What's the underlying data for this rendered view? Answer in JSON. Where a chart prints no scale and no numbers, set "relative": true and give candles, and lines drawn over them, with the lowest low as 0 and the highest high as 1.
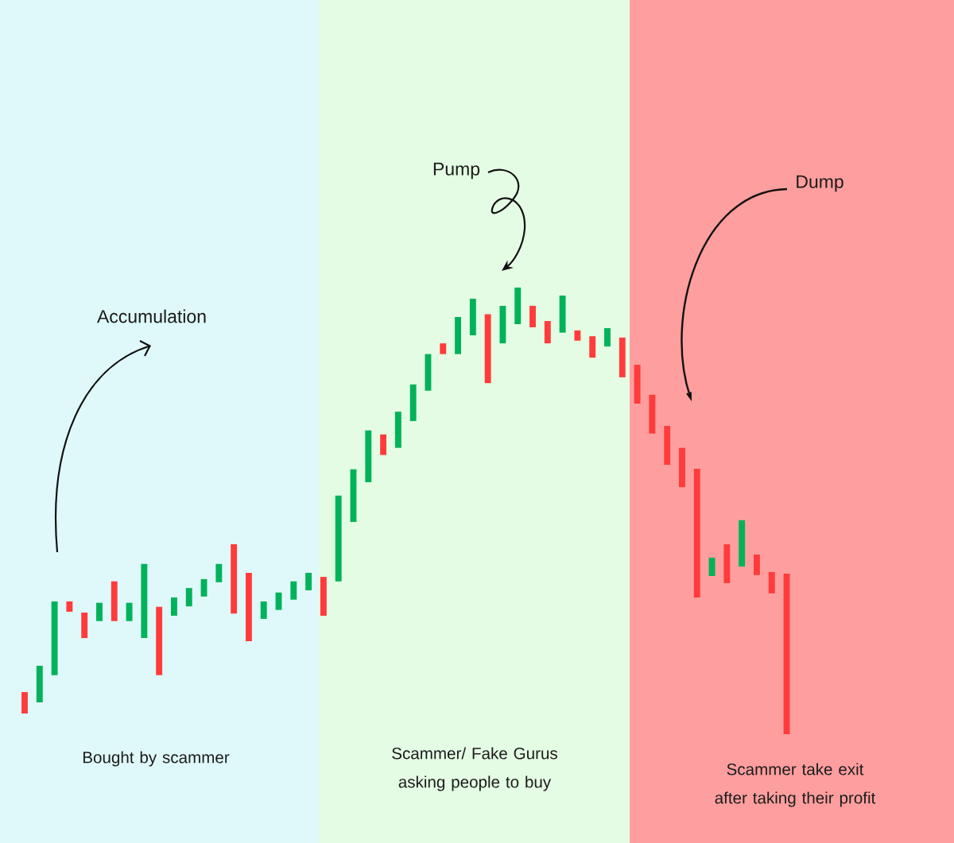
{
  "chart_data": {
    "type": "candlestick",
    "relative": true,
    "categories": [
      null,
      null,
      null,
      null,
      null,
      null,
      null,
      null,
      null,
      null,
      null,
      null,
      null,
      null,
      null,
      null,
      null,
      null,
      null,
      null,
      null,
      null,
      null,
      null,
      null,
      null,
      null,
      null,
      null,
      null,
      null,
      null,
      null,
      null,
      null,
      null,
      null,
      null,
      null,
      null,
      null,
      null,
      null,
      null,
      null,
      null,
      null,
      null,
      null,
      null,
      null,
      null
    ],
    "ohlc": [
      [
        0.094,
        0.094,
        0.046,
        0.046
      ],
      [
        0.071,
        0.153,
        0.071,
        0.153
      ],
      [
        0.132,
        0.297,
        0.132,
        0.297
      ],
      [
        0.297,
        0.297,
        0.274,
        0.274
      ],
      [
        0.272,
        0.272,
        0.215,
        0.215
      ],
      [
        0.253,
        0.294,
        0.253,
        0.294
      ],
      [
        0.342,
        0.342,
        0.253,
        0.253
      ],
      [
        0.253,
        0.294,
        0.253,
        0.294
      ],
      [
        0.215,
        0.381,
        0.215,
        0.381
      ],
      [
        0.285,
        0.285,
        0.132,
        0.132
      ],
      [
        0.265,
        0.306,
        0.265,
        0.306
      ],
      [
        0.286,
        0.327,
        0.286,
        0.327
      ],
      [
        0.308,
        0.347,
        0.308,
        0.347
      ],
      [
        0.34,
        0.381,
        0.34,
        0.381
      ],
      [
        0.425,
        0.425,
        0.27,
        0.27
      ],
      [
        0.361,
        0.361,
        0.208,
        0.208
      ],
      [
        0.258,
        0.297,
        0.258,
        0.297
      ],
      [
        0.278,
        0.317,
        0.278,
        0.317
      ],
      [
        0.301,
        0.342,
        0.301,
        0.342
      ],
      [
        0.322,
        0.361,
        0.322,
        0.361
      ],
      [
        0.352,
        0.352,
        0.265,
        0.265
      ],
      [
        0.342,
        0.534,
        0.342,
        0.534
      ],
      [
        0.475,
        0.593,
        0.475,
        0.593
      ],
      [
        0.564,
        0.68,
        0.564,
        0.68
      ],
      [
        0.671,
        0.671,
        0.625,
        0.625
      ],
      [
        0.641,
        0.722,
        0.641,
        0.722
      ],
      [
        0.701,
        0.783,
        0.701,
        0.783
      ],
      [
        0.769,
        0.851,
        0.769,
        0.851
      ],
      [
        0.875,
        0.875,
        0.851,
        0.851
      ],
      [
        0.851,
        0.934,
        0.851,
        0.934
      ],
      [
        0.893,
        0.975,
        0.893,
        0.975
      ],
      [
        0.94,
        0.94,
        0.786,
        0.786
      ],
      [
        0.875,
        0.959,
        0.875,
        0.959
      ],
      [
        0.918,
        1,
        0.918,
        1
      ],
      [
        0.959,
        0.959,
        0.911,
        0.911
      ],
      [
        0.925,
        0.925,
        0.875,
        0.875
      ],
      [
        0.899,
        0.982,
        0.899,
        0.982
      ],
      [
        0.904,
        0.904,
        0.881,
        0.881
      ],
      [
        0.891,
        0.891,
        0.843,
        0.843
      ],
      [
        0.868,
        0.909,
        0.868,
        0.909
      ],
      [
        0.888,
        0.888,
        0.799,
        0.799
      ],
      [
        0.827,
        0.827,
        0.74,
        0.74
      ],
      [
        0.76,
        0.76,
        0.673,
        0.673
      ],
      [
        0.69,
        0.69,
        0.603,
        0.603
      ],
      [
        0.641,
        0.641,
        0.553,
        0.553
      ],
      [
        0.594,
        0.594,
        0.306,
        0.306
      ],
      [
        0.354,
        0.395,
        0.354,
        0.395
      ],
      [
        0.425,
        0.425,
        0.338,
        0.338
      ],
      [
        0.375,
        0.479,
        0.375,
        0.479
      ],
      [
        0.402,
        0.402,
        0.356,
        0.356
      ],
      [
        0.363,
        0.363,
        0.315,
        0.315
      ],
      [
        0.359,
        0.359,
        0,
        0
      ]
    ],
    "colors": [
      "#ff3b3b",
      "#00b259",
      "#00b259",
      "#ff3b3b",
      "#ff3b3b",
      "#00b259",
      "#ff3b3b",
      "#00b259",
      "#00b259",
      "#ff3b3b",
      "#00b259",
      "#00b259",
      "#00b259",
      "#00b259",
      "#ff3b3b",
      "#ff3b3b",
      "#00b259",
      "#00b259",
      "#00b259",
      "#00b259",
      "#ff3b3b",
      "#00b259",
      "#00b259",
      "#00b259",
      "#ff3b3b",
      "#00b259",
      "#00b259",
      "#00b259",
      "#ff3b3b",
      "#00b259",
      "#00b259",
      "#ff3b3b",
      "#00b259",
      "#00b259",
      "#ff3b3b",
      "#ff3b3b",
      "#00b259",
      "#ff3b3b",
      "#ff3b3b",
      "#00b259",
      "#ff3b3b",
      "#ff3b3b",
      "#ff3b3b",
      "#ff3b3b",
      "#ff3b3b",
      "#ff3b3b",
      "#00b259",
      "#ff3b3b",
      "#00b259",
      "#ff3b3b",
      "#ff3b3b",
      "#ff3b3b"
    ],
    "annotations": [
      "Accumulation",
      "Pump",
      "Dump",
      "Bought by scammer",
      "Scammer/ Fake Gurus asking people to buy",
      "Scammer take exit after taking their profit"
    ]
  }
}
